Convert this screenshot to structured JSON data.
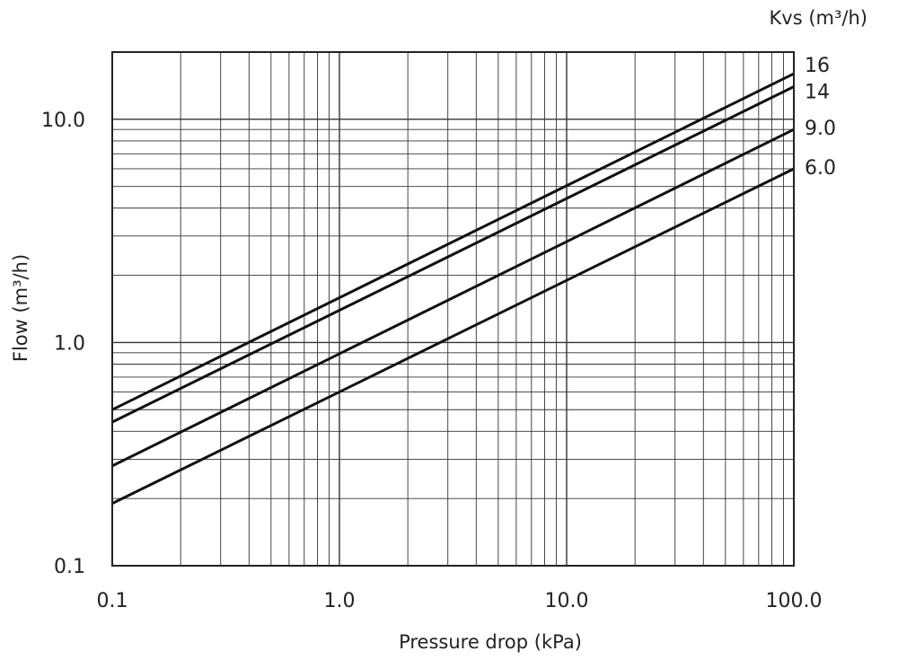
{
  "chart_data": {
    "type": "line",
    "x_scale": "log",
    "y_scale": "log",
    "xlim": [
      0.1,
      100
    ],
    "ylim": [
      0.1,
      20
    ],
    "xlabel": "Pressure drop (kPa)",
    "ylabel": "Flow  (m³/h)",
    "legend_title": "Kvs (m³/h)",
    "grid": true,
    "x_ticks": [
      {
        "value": 0.1,
        "label": "0.1"
      },
      {
        "value": 1,
        "label": "1.0"
      },
      {
        "value": 10,
        "label": "10.0"
      },
      {
        "value": 100,
        "label": "100.0"
      }
    ],
    "y_ticks": [
      {
        "value": 0.1,
        "label": "0.1"
      },
      {
        "value": 1,
        "label": "1.0"
      },
      {
        "value": 10,
        "label": "10.0"
      }
    ],
    "series": [
      {
        "name": "16",
        "x": [
          0.1,
          100
        ],
        "y": [
          0.5,
          16
        ]
      },
      {
        "name": "14",
        "x": [
          0.1,
          100
        ],
        "y": [
          0.44,
          14
        ]
      },
      {
        "name": "9.0",
        "x": [
          0.1,
          100
        ],
        "y": [
          0.28,
          9.0
        ]
      },
      {
        "name": "6.0",
        "x": [
          0.1,
          100
        ],
        "y": [
          0.19,
          6.0
        ]
      }
    ],
    "line_color": "#111111",
    "grid_color": "#333333"
  }
}
